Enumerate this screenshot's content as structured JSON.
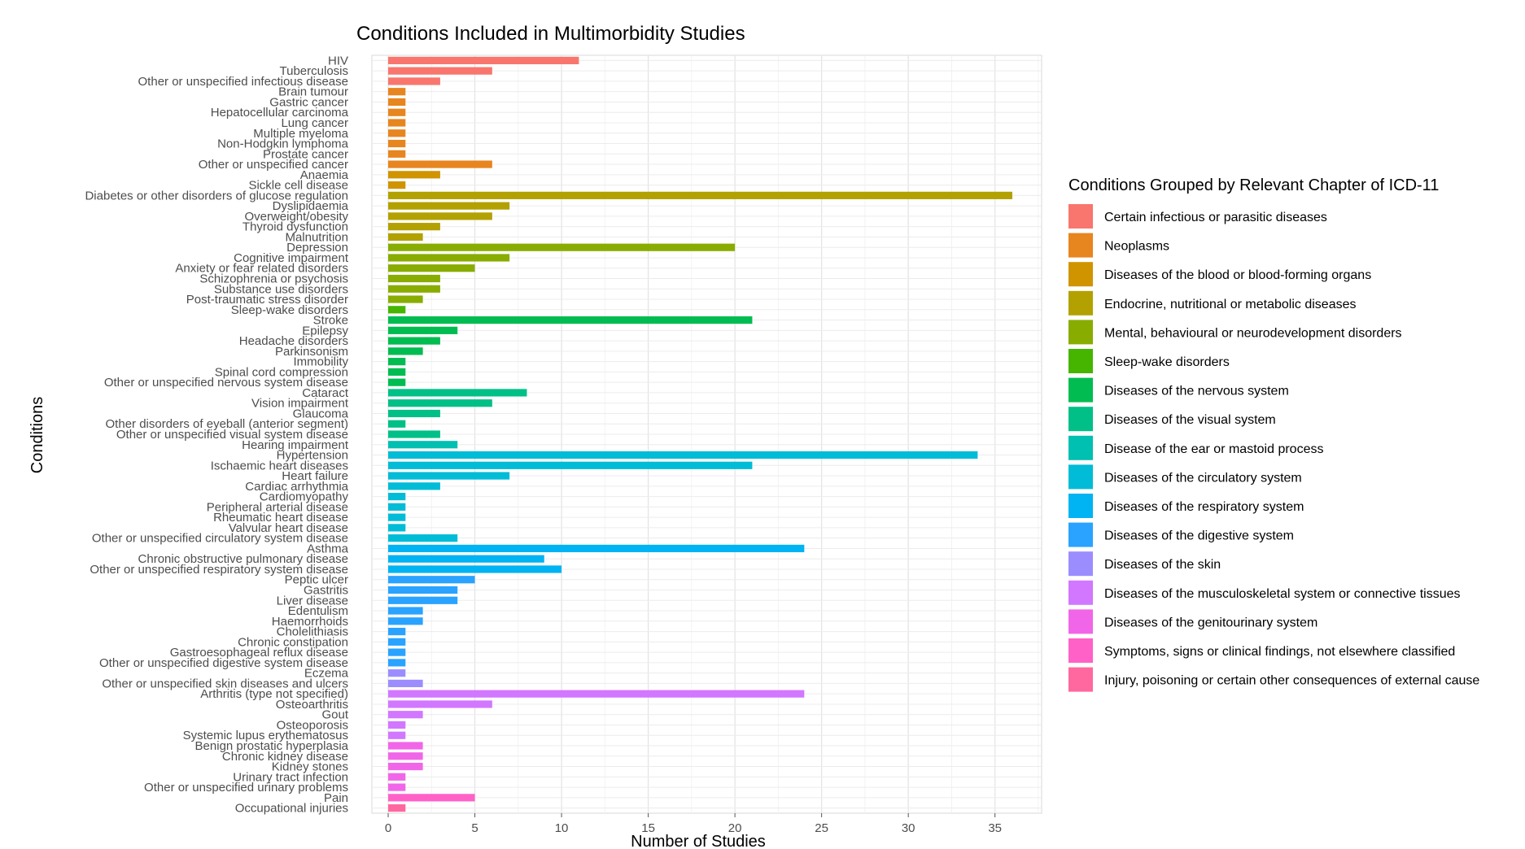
{
  "chart_data": {
    "type": "bar",
    "orientation": "horizontal",
    "title": "Conditions Included in Multimorbidity Studies",
    "xlabel": "Number of Studies",
    "ylabel": "Conditions",
    "xlim": [
      0,
      37.5
    ],
    "xticks": [
      0,
      5,
      10,
      15,
      20,
      25,
      30,
      35
    ],
    "grid": true,
    "legend_position": "right",
    "legend_title": "Conditions Grouped by Relevant Chapter of ICD-11",
    "groups": [
      {
        "name": "Certain infectious or parasitic diseases",
        "color": "#F8766D"
      },
      {
        "name": "Neoplasms",
        "color": "#E7851E"
      },
      {
        "name": "Diseases of the blood or blood-forming organs",
        "color": "#D09400"
      },
      {
        "name": "Endocrine, nutritional or metabolic diseases",
        "color": "#B2A100"
      },
      {
        "name": "Mental, behavioural or neurodevelopment disorders",
        "color": "#89AC00"
      },
      {
        "name": "Sleep-wake disorders",
        "color": "#45B500"
      },
      {
        "name": "Diseases of the nervous system",
        "color": "#00BC51"
      },
      {
        "name": "Diseases of the visual system",
        "color": "#00C087"
      },
      {
        "name": "Disease of the ear or mastoid process",
        "color": "#00C0B2"
      },
      {
        "name": "Diseases of the circulatory system",
        "color": "#00BCD6"
      },
      {
        "name": "Diseases of the respiratory system",
        "color": "#00B3F2"
      },
      {
        "name": "Diseases of the digestive system",
        "color": "#29A3FF"
      },
      {
        "name": "Diseases of the skin",
        "color": "#9C8DFF"
      },
      {
        "name": "Diseases of the musculoskeletal system or connective tissues",
        "color": "#D277FF"
      },
      {
        "name": "Diseases of the genitourinary system",
        "color": "#F166E8"
      },
      {
        "name": "Symptoms, signs or clinical findings, not elsewhere classified",
        "color": "#FF61C7"
      },
      {
        "name": "Injury, poisoning or certain other consequences of external cause",
        "color": "#FF689E"
      }
    ],
    "bars": [
      {
        "label": "HIV",
        "value": 11,
        "group": 0
      },
      {
        "label": "Tuberculosis",
        "value": 6,
        "group": 0
      },
      {
        "label": "Other or unspecified infectious disease",
        "value": 3,
        "group": 0
      },
      {
        "label": "Brain tumour",
        "value": 1,
        "group": 1
      },
      {
        "label": "Gastric cancer",
        "value": 1,
        "group": 1
      },
      {
        "label": "Hepatocellular carcinoma",
        "value": 1,
        "group": 1
      },
      {
        "label": "Lung cancer",
        "value": 1,
        "group": 1
      },
      {
        "label": "Multiple myeloma",
        "value": 1,
        "group": 1
      },
      {
        "label": "Non-Hodgkin lymphoma",
        "value": 1,
        "group": 1
      },
      {
        "label": "Prostate cancer",
        "value": 1,
        "group": 1
      },
      {
        "label": "Other or unspecified cancer",
        "value": 6,
        "group": 1
      },
      {
        "label": "Anaemia",
        "value": 3,
        "group": 2
      },
      {
        "label": "Sickle cell disease",
        "value": 1,
        "group": 2
      },
      {
        "label": "Diabetes or other disorders of glucose regulation",
        "value": 36,
        "group": 3
      },
      {
        "label": "Dyslipidaemia",
        "value": 7,
        "group": 3
      },
      {
        "label": "Overweight/obesity",
        "value": 6,
        "group": 3
      },
      {
        "label": "Thyroid dysfunction",
        "value": 3,
        "group": 3
      },
      {
        "label": "Malnutrition",
        "value": 2,
        "group": 3
      },
      {
        "label": "Depression",
        "value": 20,
        "group": 4
      },
      {
        "label": "Cognitive impairment",
        "value": 7,
        "group": 4
      },
      {
        "label": "Anxiety or fear related disorders",
        "value": 5,
        "group": 4
      },
      {
        "label": "Schizophrenia or psychosis",
        "value": 3,
        "group": 4
      },
      {
        "label": "Substance use disorders",
        "value": 3,
        "group": 4
      },
      {
        "label": "Post-traumatic stress disorder",
        "value": 2,
        "group": 4
      },
      {
        "label": "Sleep-wake disorders",
        "value": 1,
        "group": 5
      },
      {
        "label": "Stroke",
        "value": 21,
        "group": 6
      },
      {
        "label": "Epilepsy",
        "value": 4,
        "group": 6
      },
      {
        "label": "Headache disorders",
        "value": 3,
        "group": 6
      },
      {
        "label": "Parkinsonism",
        "value": 2,
        "group": 6
      },
      {
        "label": "Immobility",
        "value": 1,
        "group": 6
      },
      {
        "label": "Spinal cord compression",
        "value": 1,
        "group": 6
      },
      {
        "label": "Other or unspecified nervous system disease",
        "value": 1,
        "group": 6
      },
      {
        "label": "Cataract",
        "value": 8,
        "group": 7
      },
      {
        "label": "Vision impairment",
        "value": 6,
        "group": 7
      },
      {
        "label": "Glaucoma",
        "value": 3,
        "group": 7
      },
      {
        "label": "Other disorders of eyeball (anterior segment)",
        "value": 1,
        "group": 7
      },
      {
        "label": "Other or unspecified visual system disease",
        "value": 3,
        "group": 7
      },
      {
        "label": "Hearing impairment",
        "value": 4,
        "group": 8
      },
      {
        "label": "Hypertension",
        "value": 34,
        "group": 9
      },
      {
        "label": "Ischaemic heart diseases",
        "value": 21,
        "group": 9
      },
      {
        "label": "Heart failure",
        "value": 7,
        "group": 9
      },
      {
        "label": "Cardiac arrhythmia",
        "value": 3,
        "group": 9
      },
      {
        "label": "Cardiomyopathy",
        "value": 1,
        "group": 9
      },
      {
        "label": "Peripheral arterial disease",
        "value": 1,
        "group": 9
      },
      {
        "label": "Rheumatic heart disease",
        "value": 1,
        "group": 9
      },
      {
        "label": "Valvular heart disease",
        "value": 1,
        "group": 9
      },
      {
        "label": "Other or unspecified circulatory system disease",
        "value": 4,
        "group": 9
      },
      {
        "label": "Asthma",
        "value": 24,
        "group": 10
      },
      {
        "label": "Chronic obstructive pulmonary disease",
        "value": 9,
        "group": 10
      },
      {
        "label": "Other or unspecified respiratory system disease",
        "value": 10,
        "group": 10
      },
      {
        "label": "Peptic ulcer",
        "value": 5,
        "group": 11
      },
      {
        "label": "Gastritis",
        "value": 4,
        "group": 11
      },
      {
        "label": "Liver disease",
        "value": 4,
        "group": 11
      },
      {
        "label": "Edentulism",
        "value": 2,
        "group": 11
      },
      {
        "label": "Haemorrhoids",
        "value": 2,
        "group": 11
      },
      {
        "label": "Cholelithiasis",
        "value": 1,
        "group": 11
      },
      {
        "label": "Chronic constipation",
        "value": 1,
        "group": 11
      },
      {
        "label": "Gastroesophageal reflux disease",
        "value": 1,
        "group": 11
      },
      {
        "label": "Other or unspecified digestive system disease",
        "value": 1,
        "group": 11
      },
      {
        "label": "Eczema",
        "value": 1,
        "group": 12
      },
      {
        "label": "Other or unspecified skin diseases and ulcers",
        "value": 2,
        "group": 12
      },
      {
        "label": "Arthritis (type not specified)",
        "value": 24,
        "group": 13
      },
      {
        "label": "Osteoarthritis",
        "value": 6,
        "group": 13
      },
      {
        "label": "Gout",
        "value": 2,
        "group": 13
      },
      {
        "label": "Osteoporosis",
        "value": 1,
        "group": 13
      },
      {
        "label": "Systemic lupus erythematosus",
        "value": 1,
        "group": 13
      },
      {
        "label": "Benign prostatic hyperplasia",
        "value": 2,
        "group": 14
      },
      {
        "label": "Chronic kidney disease",
        "value": 2,
        "group": 14
      },
      {
        "label": "Kidney stones",
        "value": 2,
        "group": 14
      },
      {
        "label": "Urinary tract infection",
        "value": 1,
        "group": 14
      },
      {
        "label": "Other or unspecified urinary problems",
        "value": 1,
        "group": 14
      },
      {
        "label": "Pain",
        "value": 5,
        "group": 15
      },
      {
        "label": "Occupational injuries",
        "value": 1,
        "group": 16
      }
    ]
  }
}
